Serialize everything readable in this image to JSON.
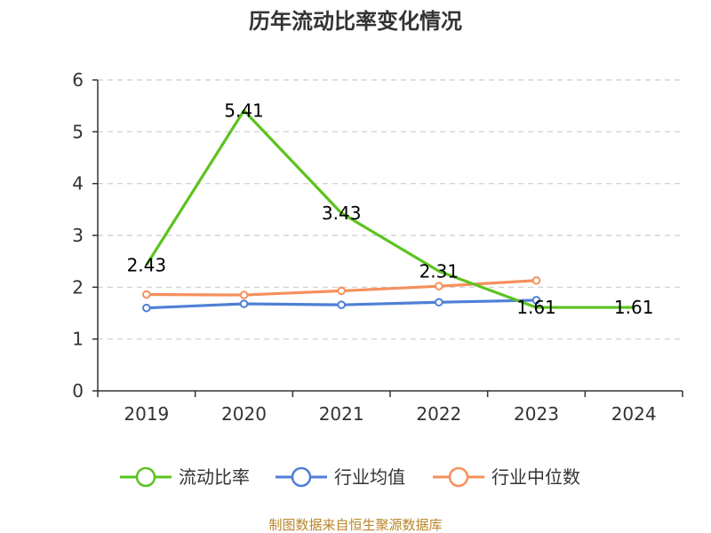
{
  "chart_data": {
    "type": "line",
    "title": "历年流动比率变化情况",
    "categories": [
      "2019",
      "2020",
      "2021",
      "2022",
      "2023",
      "2024"
    ],
    "ylim": [
      0,
      6
    ],
    "yticks": [
      "0",
      "1",
      "2",
      "3",
      "4",
      "5",
      "6"
    ],
    "grid": true,
    "legend_position": "bottom",
    "series": [
      {
        "name": "流动比率",
        "color": "#5bc31f",
        "values": [
          2.43,
          5.41,
          3.43,
          2.31,
          1.61,
          1.61
        ],
        "labels": [
          "2.43",
          "5.41",
          "3.43",
          "2.31",
          "1.61",
          "1.61"
        ],
        "show_markers": false
      },
      {
        "name": "行业均值",
        "color": "#4f7fd6",
        "values": [
          1.6,
          1.68,
          1.66,
          1.71,
          1.75,
          null
        ],
        "show_markers": true
      },
      {
        "name": "行业中位数",
        "color": "#f5905c",
        "values": [
          1.86,
          1.85,
          1.93,
          2.02,
          2.13,
          null
        ],
        "show_markers": true
      }
    ]
  },
  "source": "制图数据来自恒生聚源数据库"
}
